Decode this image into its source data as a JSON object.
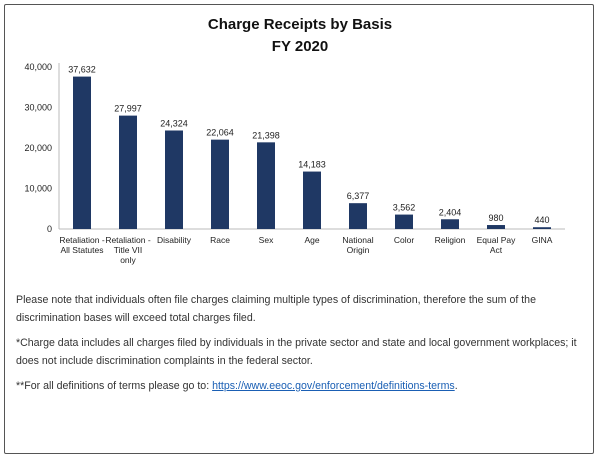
{
  "chart_data": {
    "type": "bar",
    "title": "Charge Receipts by Basis",
    "subtitle": "FY 2020",
    "categories": [
      [
        "Retaliation -",
        "All Statutes"
      ],
      [
        "Retaliation -",
        "Title VII",
        "only"
      ],
      [
        "Disability"
      ],
      [
        "Race"
      ],
      [
        "Sex"
      ],
      [
        "Age"
      ],
      [
        "National",
        "Origin"
      ],
      [
        "Color"
      ],
      [
        "Religion"
      ],
      [
        "Equal Pay",
        "Act"
      ],
      [
        "GINA"
      ]
    ],
    "values": [
      37632,
      27997,
      24324,
      22064,
      21398,
      14183,
      6377,
      3562,
      2404,
      980,
      440
    ],
    "data_labels": [
      "37,632",
      "27,997",
      "24,324",
      "22,064",
      "21,398",
      "14,183",
      "6,377",
      "3,562",
      "2,404",
      "980",
      "440"
    ],
    "yticks": [
      "0",
      "10,000",
      "20,000",
      "30,000",
      "40,000"
    ],
    "ylim": [
      0,
      40000
    ],
    "grid": false,
    "bar_color": "#1f3864"
  },
  "notes": {
    "note1": "Please note that individuals often file charges claiming multiple types of discrimination, therefore the sum of the discrimination bases will exceed total charges filed.",
    "note2": "*Charge data includes all charges filed by individuals in the private sector and state and local government workplaces; it does not include discrimination complaints in the federal sector.",
    "note3_prefix": "**For all definitions of terms please go to: ",
    "note3_link": "https://www.eeoc.gov/enforcement/definitions-terms",
    "note3_suffix": "."
  }
}
